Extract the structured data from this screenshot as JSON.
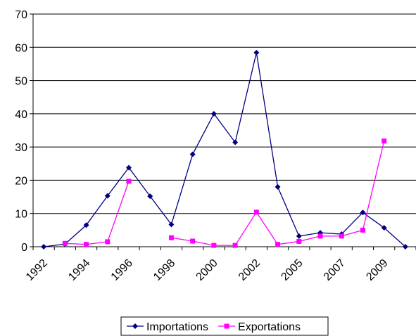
{
  "chart_data": {
    "type": "line",
    "categories": [
      "1992",
      null,
      "1994",
      null,
      "1996",
      null,
      "1998",
      null,
      "2000",
      null,
      "2002",
      null,
      "2005",
      null,
      "2007",
      null,
      "2009",
      null
    ],
    "series": [
      {
        "name": "Importations",
        "color": "#000080",
        "marker": "diamond",
        "values": [
          0,
          0.8,
          6.5,
          15.3,
          23.8,
          15.2,
          6.7,
          27.8,
          40,
          31.4,
          58.4,
          18,
          3.2,
          4.2,
          3.8,
          10.3,
          5.7,
          0
        ]
      },
      {
        "name": "Exportations",
        "color": "#ff00ff",
        "marker": "square",
        "values": [
          null,
          1.0,
          0.7,
          1.5,
          19.7,
          null,
          2.7,
          1.7,
          0.4,
          0.4,
          10.4,
          0.7,
          1.6,
          3.2,
          3.2,
          5.0,
          31.8,
          null
        ]
      }
    ],
    "ylim": [
      0,
      70
    ],
    "yticks": [
      0,
      10,
      20,
      30,
      40,
      50,
      60,
      70
    ],
    "grid": true,
    "legend": "bottom"
  }
}
